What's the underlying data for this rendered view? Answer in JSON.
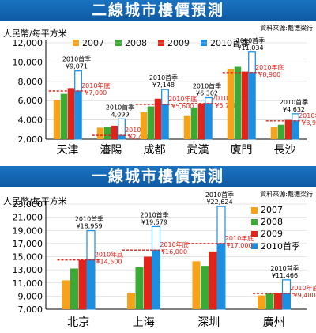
{
  "chart_data": [
    {
      "type": "bar",
      "title": "二線城市樓價預測",
      "source": "資料來源:戴德梁行",
      "ylabel": "人民幣/每平方米",
      "ylim": [
        2000,
        12000
      ],
      "yticks": [
        "2,000",
        "4,000",
        "6,000",
        "8,000",
        "10,000",
        "12,000"
      ],
      "categories": [
        "天津",
        "瀋陽",
        "成都",
        "武漢",
        "廈門",
        "長沙"
      ],
      "series": [
        {
          "name": "2007",
          "values": [
            6100,
            3200,
            4800,
            4400,
            9300,
            3300
          ]
        },
        {
          "name": "2008",
          "values": [
            6700,
            3300,
            5400,
            5300,
            9500,
            3500
          ]
        },
        {
          "name": "2009",
          "values": [
            7300,
            3400,
            6200,
            5700,
            9000,
            4000
          ]
        },
        {
          "name": "2010首季",
          "values": [
            9071,
            4099,
            7148,
            6302,
            11034,
            4632
          ]
        }
      ],
      "q1_labels": [
        "2010首季\n¥9,071",
        "2010首季\n4,099",
        "2010首季\n¥7,148",
        "2010首季\n¥6,302",
        "2010首季\n¥11,034",
        "2010首季\n¥4,632"
      ],
      "forecast_values": [
        7000,
        2400,
        5600,
        5700,
        8900,
        3900
      ],
      "forecast_labels": [
        "2010年底\n¥7,000",
        "2010年底\n¥2,400",
        "2010年底\n¥5,600",
        "2010年底\n¥5,700",
        "2010年底\n¥8,900",
        "2010年底\n¥3,900"
      ]
    },
    {
      "type": "bar",
      "title": "一線城市樓價預測",
      "source": "資料來源:戴德梁行",
      "ylabel": "人民幣/每平方米",
      "ylim": [
        7000,
        23000
      ],
      "yticks": [
        "7,000",
        "9,000",
        "11,000",
        "13,000",
        "15,000",
        "17,000",
        "19,000",
        "21,000",
        "23,000"
      ],
      "categories": [
        "北京",
        "上海",
        "深圳",
        "廣州"
      ],
      "series": [
        {
          "name": "2007",
          "values": [
            11400,
            9500,
            14300,
            9100
          ]
        },
        {
          "name": "2008",
          "values": [
            13200,
            13400,
            13600,
            9400
          ]
        },
        {
          "name": "2009",
          "values": [
            14500,
            15000,
            15800,
            9500
          ]
        },
        {
          "name": "2010首季",
          "values": [
            18959,
            19579,
            22624,
            11466
          ]
        }
      ],
      "q1_labels": [
        "2010首季\n¥18,959",
        "2010首季\n¥19,579",
        "2010首季\n¥22,624",
        "2010首季\n¥11,466"
      ],
      "forecast_values": [
        14500,
        16000,
        17000,
        9400
      ],
      "forecast_labels": [
        "2010年底\n¥14,500",
        "2010年底\n¥16,000",
        "2010年底\n¥17,000",
        "2010年底\n¥9,400"
      ]
    }
  ],
  "colors": {
    "s2007": "#f7a21b",
    "s2008": "#3aaa35",
    "s2009": "#e2231a",
    "s2010": "#1d8fe0",
    "forecast": "#e2231a",
    "title_bg": "#1466b4"
  }
}
